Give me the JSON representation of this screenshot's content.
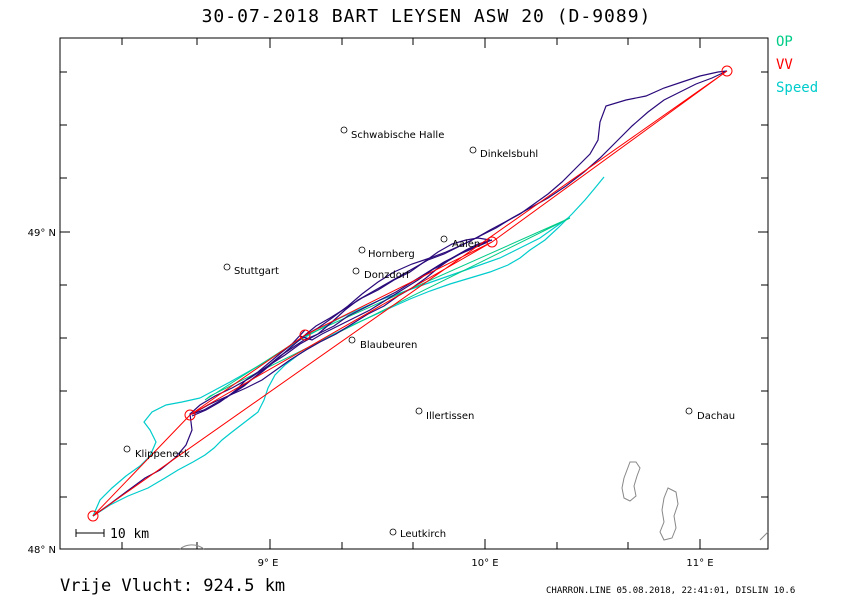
{
  "title": "30-07-2018   BART LEYSEN   ASW 20 (D-9089)",
  "legend": [
    {
      "label": "OP",
      "color": "#00cc88"
    },
    {
      "label": "VV",
      "color": "#ff0000"
    },
    {
      "label": "Speed",
      "color": "#00cccc"
    }
  ],
  "axes": {
    "x_ticks": [
      "9° E",
      "10° E",
      "11° E"
    ],
    "y_ticks": [
      "48° N",
      "49° N"
    ]
  },
  "scale_bar": "10 km",
  "places": [
    {
      "name": "Schwabische Halle"
    },
    {
      "name": "Dinkelsbuhl"
    },
    {
      "name": "Hornberg"
    },
    {
      "name": "Aalen"
    },
    {
      "name": "Stuttgart"
    },
    {
      "name": "Donzdorf"
    },
    {
      "name": "Blaubeuren"
    },
    {
      "name": "Illertissen"
    },
    {
      "name": "Dachau"
    },
    {
      "name": "Klippeneck"
    },
    {
      "name": "Leutkirch"
    }
  ],
  "footer": {
    "distance": "Vrije Vlucht:  924.5 km",
    "software": "CHARRON.LINE 05.08.2018, 22:41:01, DISLIN 10.6"
  },
  "colors": {
    "track": "#2a0a7a",
    "vv": "#ff0000",
    "op": "#00cc88",
    "speed": "#00cccc",
    "lakes": "#888888"
  }
}
